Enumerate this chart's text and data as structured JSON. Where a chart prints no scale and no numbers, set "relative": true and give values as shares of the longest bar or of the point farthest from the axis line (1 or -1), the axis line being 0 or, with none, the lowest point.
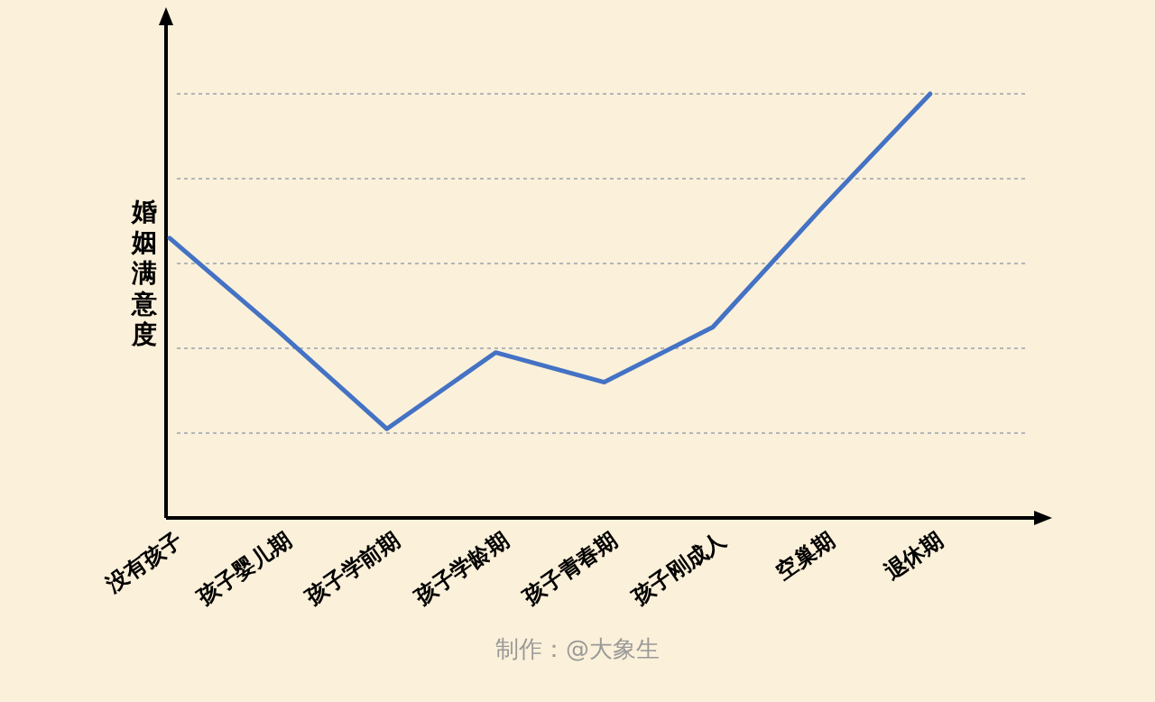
{
  "chart_data": {
    "type": "line",
    "relative": true,
    "ylabel": "婚姻满意度",
    "categories": [
      "没有孩子",
      "孩子婴儿期",
      "孩子学前期",
      "孩子学龄期",
      "孩子青春期",
      "孩子刚成人",
      "空巢期",
      "退休期"
    ],
    "series": [
      {
        "color": "#4472c4",
        "values": [
          0.66,
          0.44,
          0.21,
          0.39,
          0.32,
          0.45,
          0.73,
          1
        ]
      }
    ],
    "grid": "y",
    "marker": "none",
    "line_style": "solid",
    "annotations": [
      "制作：@大象生"
    ]
  }
}
